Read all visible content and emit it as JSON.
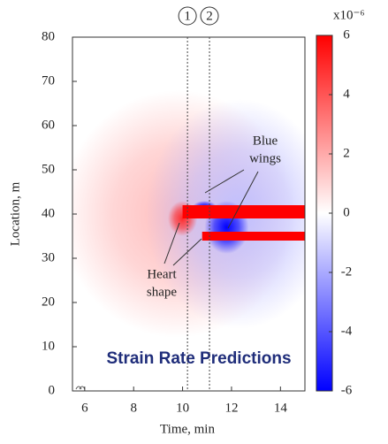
{
  "chart_data": {
    "type": "heatmap",
    "x_label": "Time, min",
    "y_label": "Location, m",
    "title": "Strain Rate Predictions",
    "xlim": [
      5.5,
      15
    ],
    "ylim": [
      0,
      80
    ],
    "xticks": [
      6,
      8,
      10,
      12,
      14
    ],
    "yticks": [
      0,
      10,
      20,
      30,
      40,
      50,
      60,
      70,
      80
    ],
    "clim": [
      -6,
      6
    ],
    "cticks": [
      -6,
      -4,
      -2,
      0,
      2,
      4,
      6
    ],
    "color_scale_label": "x10⁻⁶",
    "colors": [
      "#0000ff",
      "#ffffff",
      "#ff0000"
    ],
    "markers": [
      {
        "x": 10.2,
        "label": "1"
      },
      {
        "x": 11.1,
        "label": "2"
      }
    ],
    "regions": [
      {
        "x": 9.8,
        "y": 40,
        "rx": 4.8,
        "ry": 28,
        "value": 1.6
      },
      {
        "x": 12.3,
        "y": 40,
        "rx": 3.8,
        "ry": 26,
        "value": -1.5
      },
      {
        "x": 11.8,
        "y": 37,
        "rx": 0.9,
        "ry": 6,
        "value": -6
      },
      {
        "x": 10.9,
        "y": 41.5,
        "rx": 0.5,
        "ry": 1.5,
        "value": -6
      },
      {
        "x": 10,
        "y": 39,
        "rx": 0.6,
        "ry": 4,
        "value": 5
      }
    ],
    "bands": [
      {
        "x0": 10.0,
        "x1": 15,
        "y0": 39,
        "y1": 42,
        "value": 6
      },
      {
        "x0": 10.8,
        "x1": 15,
        "y0": 34,
        "y1": 36,
        "value": 6
      }
    ],
    "annotations": [
      {
        "lines": [
          "Blue",
          "wings"
        ]
      },
      {
        "lines": [
          "Heart",
          "shape"
        ]
      }
    ]
  }
}
